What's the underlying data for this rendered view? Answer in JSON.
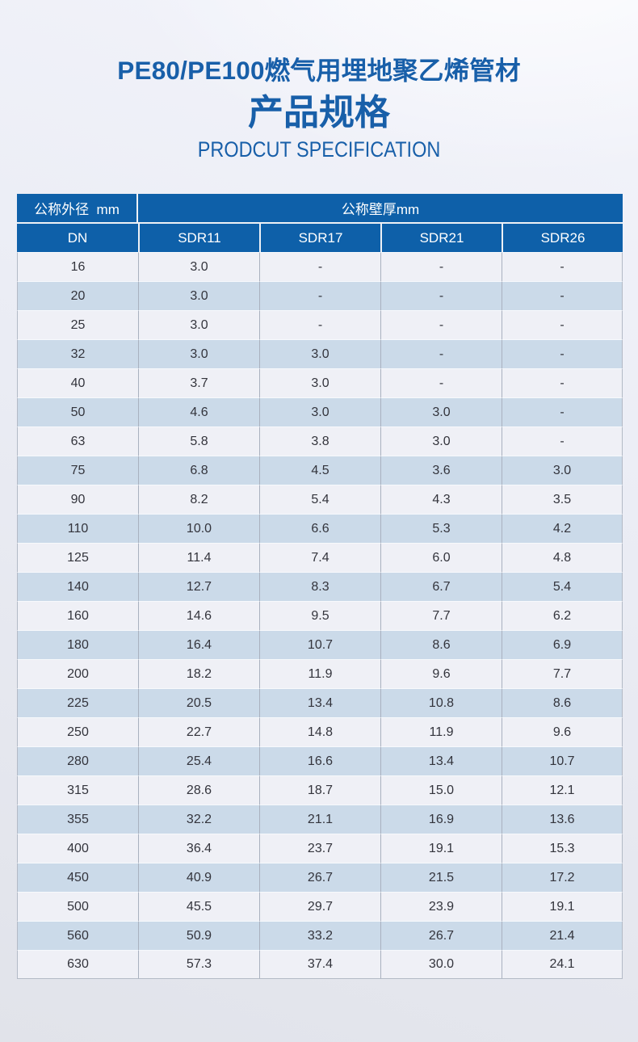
{
  "header": {
    "title_cn": "PE80/PE100燃气用埋地聚乙烯管材",
    "subtitle_cn": "产品规格",
    "subtitle_en": "PRODCUT SPECIFICATION"
  },
  "table": {
    "outer_diameter_header": "公称外径  mm",
    "wall_thickness_header": "公称壁厚mm",
    "columns": [
      "DN",
      "SDR11",
      "SDR17",
      "SDR21",
      "SDR26"
    ],
    "rows": [
      [
        "16",
        "3.0",
        "-",
        "-",
        "-"
      ],
      [
        "20",
        "3.0",
        "-",
        "-",
        "-"
      ],
      [
        "25",
        "3.0",
        "-",
        "-",
        "-"
      ],
      [
        "32",
        "3.0",
        "3.0",
        "-",
        "-"
      ],
      [
        "40",
        "3.7",
        "3.0",
        "-",
        "-"
      ],
      [
        "50",
        "4.6",
        "3.0",
        "3.0",
        "-"
      ],
      [
        "63",
        "5.8",
        "3.8",
        "3.0",
        "-"
      ],
      [
        "75",
        "6.8",
        "4.5",
        "3.6",
        "3.0"
      ],
      [
        "90",
        "8.2",
        "5.4",
        "4.3",
        "3.5"
      ],
      [
        "110",
        "10.0",
        "6.6",
        "5.3",
        "4.2"
      ],
      [
        "125",
        "11.4",
        "7.4",
        "6.0",
        "4.8"
      ],
      [
        "140",
        "12.7",
        "8.3",
        "6.7",
        "5.4"
      ],
      [
        "160",
        "14.6",
        "9.5",
        "7.7",
        "6.2"
      ],
      [
        "180",
        "16.4",
        "10.7",
        "8.6",
        "6.9"
      ],
      [
        "200",
        "18.2",
        "11.9",
        "9.6",
        "7.7"
      ],
      [
        "225",
        "20.5",
        "13.4",
        "10.8",
        "8.6"
      ],
      [
        "250",
        "22.7",
        "14.8",
        "11.9",
        "9.6"
      ],
      [
        "280",
        "25.4",
        "16.6",
        "13.4",
        "10.7"
      ],
      [
        "315",
        "28.6",
        "18.7",
        "15.0",
        "12.1"
      ],
      [
        "355",
        "32.2",
        "21.1",
        "16.9",
        "13.6"
      ],
      [
        "400",
        "36.4",
        "23.7",
        "19.1",
        "15.3"
      ],
      [
        "450",
        "40.9",
        "26.7",
        "21.5",
        "17.2"
      ],
      [
        "500",
        "45.5",
        "29.7",
        "23.9",
        "19.1"
      ],
      [
        "560",
        "50.9",
        "33.2",
        "26.7",
        "21.4"
      ],
      [
        "630",
        "57.3",
        "37.4",
        "30.0",
        "24.1"
      ]
    ]
  }
}
